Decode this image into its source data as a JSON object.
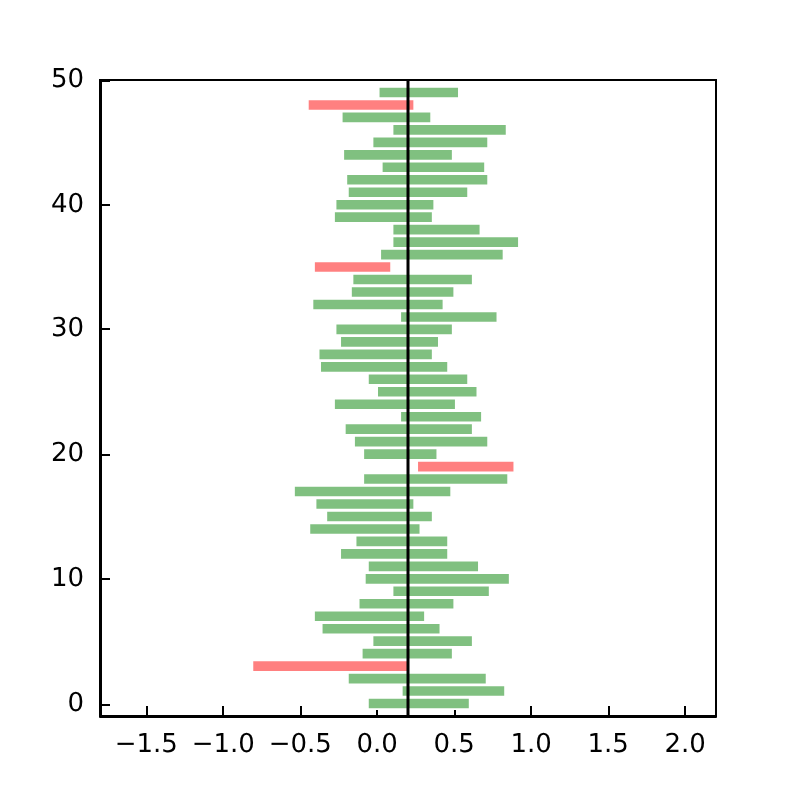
{
  "chart_data": {
    "type": "bar",
    "orientation": "horizontal",
    "x": [
      0,
      1,
      2,
      3,
      4,
      5,
      6,
      7,
      8,
      9,
      10,
      11,
      12,
      13,
      14,
      15,
      16,
      17,
      18,
      19,
      20,
      21,
      22,
      23,
      24,
      25,
      26,
      27,
      28,
      29,
      30,
      31,
      32,
      33,
      34,
      35,
      36,
      37,
      38,
      39,
      40,
      41,
      42,
      43,
      44,
      45,
      46,
      47,
      48,
      49
    ],
    "series": [
      {
        "base": [
          0.2,
          0.2,
          0.2,
          0.2,
          0.2,
          0.2,
          0.2,
          0.2,
          0.2,
          0.2,
          0.2,
          0.2,
          0.2,
          0.2,
          0.2,
          0.2,
          0.2,
          0.2,
          0.2,
          null,
          0.2,
          0.2,
          0.2,
          0.2,
          0.2,
          0.2,
          0.2,
          0.2,
          0.2,
          0.2,
          0.2,
          0.2,
          0.2,
          0.2,
          0.2,
          -0.41,
          0.2,
          0.2,
          0.2,
          0.2,
          0.2,
          0.2,
          0.2,
          0.2,
          0.2,
          0.2,
          0.2,
          0.2,
          -0.45,
          0.2
        ],
        "values": [
          -0.26,
          -0.04,
          -0.39,
          -1.01,
          -0.3,
          -0.23,
          -0.56,
          -0.61,
          -0.32,
          -0.1,
          -0.28,
          -0.26,
          -0.44,
          -0.34,
          -0.64,
          -0.53,
          -0.6,
          -0.74,
          -0.29,
          null,
          -0.29,
          -0.35,
          -0.41,
          -0.05,
          -0.48,
          -0.2,
          -0.26,
          -0.57,
          -0.58,
          -0.44,
          -0.47,
          -0.05,
          -0.62,
          -0.37,
          -0.36,
          0.5,
          -0.18,
          -0.1,
          -0.1,
          -0.48,
          -0.47,
          -0.39,
          -0.4,
          -0.17,
          -0.42,
          -0.23,
          -0.1,
          -0.43,
          0.69,
          -0.19
        ],
        "colors": [
          "#80c080",
          "#80c080",
          "#80c080",
          "#ff8080",
          "#80c080",
          "#80c080",
          "#80c080",
          "#80c080",
          "#80c080",
          "#80c080",
          "#80c080",
          "#80c080",
          "#80c080",
          "#80c080",
          "#80c080",
          "#80c080",
          "#80c080",
          "#80c080",
          "#80c080",
          null,
          "#80c080",
          "#80c080",
          "#80c080",
          "#80c080",
          "#80c080",
          "#80c080",
          "#80c080",
          "#80c080",
          "#80c080",
          "#80c080",
          "#80c080",
          "#80c080",
          "#80c080",
          "#80c080",
          "#80c080",
          "#ff8080",
          "#80c080",
          "#80c080",
          "#80c080",
          "#80c080",
          "#80c080",
          "#80c080",
          "#80c080",
          "#80c080",
          "#80c080",
          "#80c080",
          "#80c080",
          "#80c080",
          "#ff8080",
          "#80c080"
        ]
      },
      {
        "base": [
          0.2,
          0.2,
          0.2,
          null,
          0.2,
          0.2,
          0.2,
          0.2,
          0.2,
          0.2,
          0.2,
          0.2,
          0.2,
          0.2,
          0.2,
          0.2,
          0.2,
          0.2,
          0.2,
          0.26,
          0.2,
          0.2,
          0.2,
          0.2,
          0.2,
          0.2,
          0.2,
          0.2,
          0.2,
          0.2,
          0.2,
          0.2,
          0.2,
          0.2,
          0.2,
          null,
          0.2,
          0.2,
          0.2,
          0.2,
          0.2,
          0.2,
          0.2,
          0.2,
          0.2,
          0.2,
          0.2,
          0.2,
          null,
          0.2
        ],
        "values": [
          0.4,
          0.63,
          0.51,
          null,
          0.29,
          0.42,
          0.21,
          0.11,
          0.3,
          0.53,
          0.66,
          0.46,
          0.26,
          0.26,
          0.08,
          0.16,
          0.04,
          0.28,
          0.65,
          0.63,
          0.19,
          0.52,
          0.42,
          0.48,
          0.31,
          0.45,
          0.39,
          0.26,
          0.16,
          0.2,
          0.29,
          0.58,
          0.23,
          0.3,
          0.42,
          null,
          0.62,
          0.72,
          0.47,
          0.16,
          0.17,
          0.39,
          0.52,
          0.5,
          0.29,
          0.52,
          0.64,
          0.15,
          null,
          0.33
        ],
        "colors": [
          "#80c080",
          "#80c080",
          "#80c080",
          null,
          "#80c080",
          "#80c080",
          "#80c080",
          "#80c080",
          "#80c080",
          "#80c080",
          "#80c080",
          "#80c080",
          "#80c080",
          "#80c080",
          "#80c080",
          "#80c080",
          "#80c080",
          "#80c080",
          "#80c080",
          "#ff8080",
          "#80c080",
          "#80c080",
          "#80c080",
          "#80c080",
          "#80c080",
          "#80c080",
          "#80c080",
          "#80c080",
          "#80c080",
          "#80c080",
          "#80c080",
          "#80c080",
          "#80c080",
          "#80c080",
          "#80c080",
          null,
          "#80c080",
          "#80c080",
          "#80c080",
          "#80c080",
          "#80c080",
          "#80c080",
          "#80c080",
          "#80c080",
          "#80c080",
          "#80c080",
          "#80c080",
          "#80c080",
          null,
          "#80c080"
        ]
      }
    ],
    "xlim": [
      -1.8,
      2.2
    ],
    "xticks": [
      {
        "value": -1.5,
        "label": "−1.5"
      },
      {
        "value": -1,
        "label": "−1.0"
      },
      {
        "value": -0.5,
        "label": "−0.5"
      },
      {
        "value": 0,
        "label": "0.0"
      },
      {
        "value": 0.5,
        "label": "0.5"
      },
      {
        "value": 1,
        "label": "1.0"
      },
      {
        "value": 1.5,
        "label": "1.5"
      },
      {
        "value": 2,
        "label": "2.0"
      }
    ],
    "ylim": [
      -1,
      50
    ],
    "yticks": [
      0,
      10,
      20,
      30,
      40,
      50
    ],
    "ref_lines": [
      {
        "axis": "x",
        "value": 0.2,
        "color": "#000000"
      }
    ]
  }
}
